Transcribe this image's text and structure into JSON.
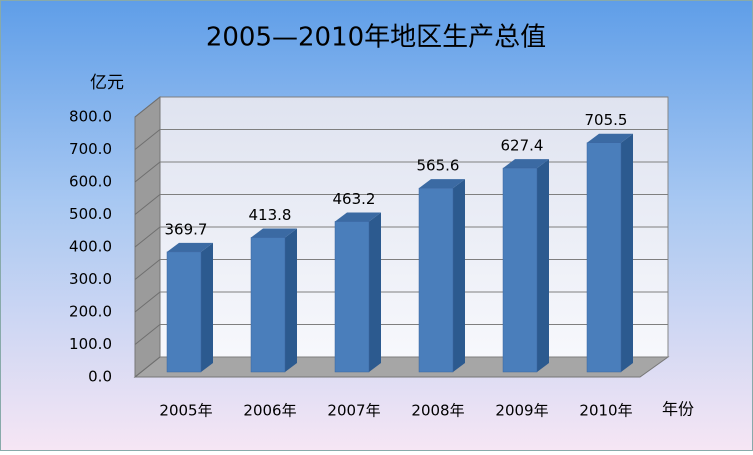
{
  "chart_data": {
    "type": "bar",
    "title": "2005—2010年地区生产总值",
    "y_label": "亿元",
    "x_label": "年份",
    "categories": [
      "2005年",
      "2006年",
      "2007年",
      "2008年",
      "2009年",
      "2010年"
    ],
    "values": [
      369.7,
      413.8,
      463.2,
      565.6,
      627.4,
      705.5
    ],
    "color": "#4a7ebb",
    "ylim": [
      0,
      800
    ],
    "yticks": [
      {
        "value": 0,
        "label": "0.0"
      },
      {
        "value": 100,
        "label": "100.0"
      },
      {
        "value": 200,
        "label": "200.0"
      },
      {
        "value": 300,
        "label": "300.0"
      },
      {
        "value": 400,
        "label": "400.0"
      },
      {
        "value": 500,
        "label": "500.0"
      },
      {
        "value": 600,
        "label": "600.0"
      },
      {
        "value": 700,
        "label": "700.0"
      },
      {
        "value": 800,
        "label": "800.0"
      }
    ],
    "grid": true
  }
}
